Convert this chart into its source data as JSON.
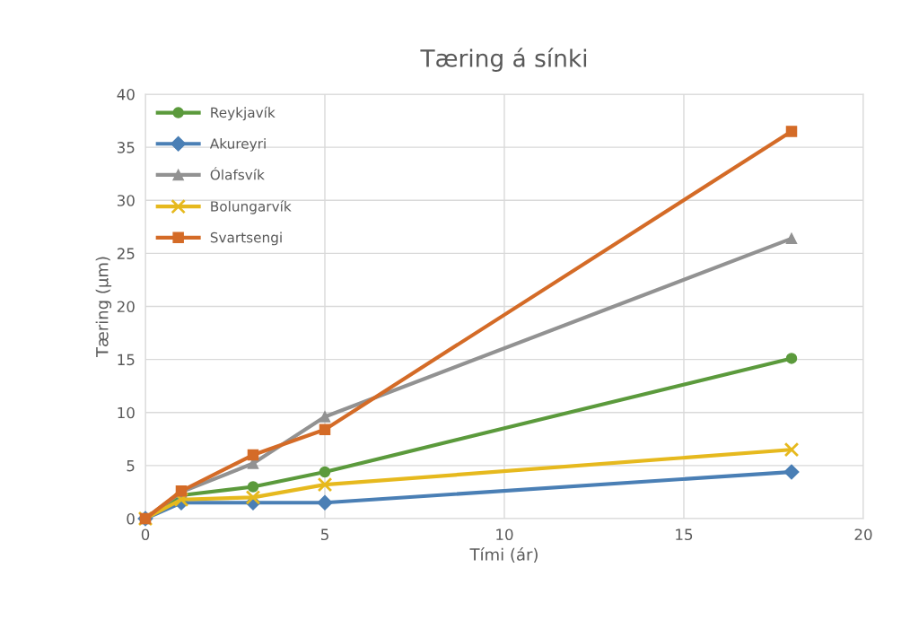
{
  "chart_data": {
    "type": "line",
    "title": "Tæring á sínki",
    "xlabel": "Tími (ár)",
    "ylabel": "Tæring (µm)",
    "x": [
      0,
      1,
      3,
      5,
      18
    ],
    "series": [
      {
        "name": "Reykjavík",
        "color": "#5b9a3c",
        "marker": "circle",
        "values": [
          0,
          2.2,
          3.0,
          4.4,
          15.1
        ]
      },
      {
        "name": "Akureyri",
        "color": "#4a7fb5",
        "marker": "diamond",
        "values": [
          0,
          1.5,
          1.5,
          1.5,
          4.4
        ]
      },
      {
        "name": "Ólafsvík",
        "color": "#929292",
        "marker": "triangle",
        "values": [
          0,
          2.5,
          5.2,
          9.6,
          26.4
        ]
      },
      {
        "name": "Bolungarvík",
        "color": "#e6b91e",
        "marker": "cross",
        "values": [
          0,
          1.8,
          2.0,
          3.2,
          6.5
        ]
      },
      {
        "name": "Svartsengi",
        "color": "#d46b27",
        "marker": "square",
        "values": [
          0,
          2.6,
          6.0,
          8.4,
          36.5
        ]
      }
    ],
    "xlim": [
      0,
      20
    ],
    "xticks": [
      0,
      5,
      10,
      15,
      20
    ],
    "ylim": [
      0,
      40
    ],
    "yticks": [
      0,
      5,
      10,
      15,
      20,
      25,
      30,
      35,
      40
    ],
    "grid": true,
    "legend": "top left",
    "line_style": "solid"
  }
}
